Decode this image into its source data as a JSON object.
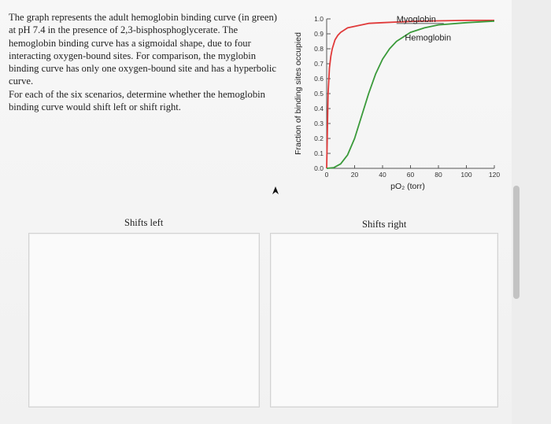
{
  "prompt": {
    "para1": "The graph represents the adult hemoglobin binding curve (in green) at pH 7.4 in the presence of 2,3-bisphosphoglycerate. The hemoglobin binding curve has a sigmoidal shape, due to four interacting oxygen-bound sites. For comparison, the myglobin binding curve has only one oxygen-bound site and has a hyperbolic curve.",
    "para2": "For each of the six scenarios, determine whether the hemoglobin binding curve would shift left or shift right."
  },
  "chart_data": {
    "type": "line",
    "ylabel": "Fraction of binding sites occupied",
    "xlabel": "pO₂ (torr)",
    "xlim": [
      0,
      120
    ],
    "ylim": [
      0,
      1
    ],
    "xticks": [
      "0",
      "20",
      "40",
      "60",
      "80",
      "100",
      "120"
    ],
    "yticks": [
      "0.0",
      "0.1",
      "0.2",
      "0.3",
      "0.4",
      "0.5",
      "0.6",
      "0.7",
      "0.8",
      "0.9",
      "1.0"
    ],
    "series": [
      {
        "name": "Myoglobin",
        "color": "#e03a3a",
        "x": [
          0,
          1,
          2,
          3,
          4,
          6,
          8,
          10,
          15,
          20,
          30,
          40,
          60,
          80,
          100,
          120
        ],
        "y": [
          0,
          0.5,
          0.67,
          0.75,
          0.8,
          0.86,
          0.89,
          0.91,
          0.94,
          0.95,
          0.97,
          0.975,
          0.983,
          0.987,
          0.99,
          0.99
        ]
      },
      {
        "name": "Hemoglobin",
        "color": "#3a9a3a",
        "x": [
          0,
          5,
          10,
          15,
          20,
          25,
          30,
          35,
          40,
          45,
          50,
          60,
          70,
          80,
          100,
          120
        ],
        "y": [
          0,
          0.004,
          0.03,
          0.09,
          0.2,
          0.35,
          0.5,
          0.63,
          0.73,
          0.8,
          0.85,
          0.91,
          0.94,
          0.96,
          0.975,
          0.985
        ]
      }
    ]
  },
  "drop_zones": {
    "left_label": "Shifts left",
    "right_label": "Shifts right"
  }
}
